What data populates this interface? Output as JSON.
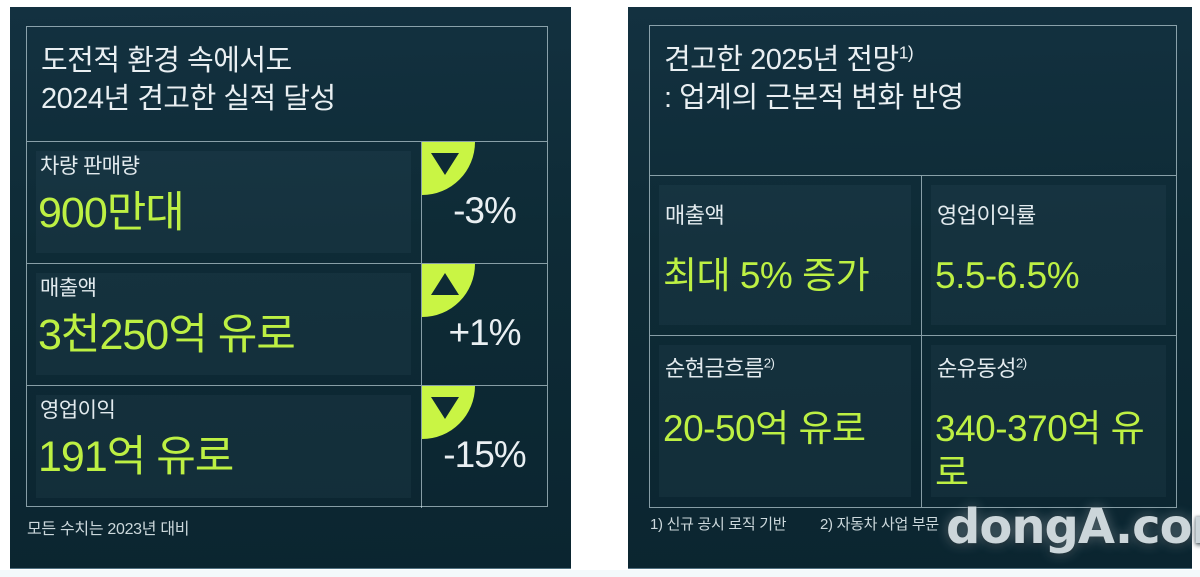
{
  "colors": {
    "panel_background": "#0e2b36",
    "accent_green": "#bff33c",
    "badge_green": "#c9f544",
    "border_line": "#d4e6ee",
    "text_white": "#e9eff2",
    "text_muted": "#ccd8dc"
  },
  "left_panel": {
    "title_line1": "도전적 환경 속에서도",
    "title_line2": "2024년 견고한 실적 달성",
    "rows": [
      {
        "label": "차량 판매량",
        "value": "900만대",
        "direction": "down",
        "change": "-3%"
      },
      {
        "label": "매출액",
        "value": "3천250억 유로",
        "direction": "up",
        "change": "+1%"
      },
      {
        "label": "영업이익",
        "value": "191억 유로",
        "direction": "down",
        "change": "-15%"
      }
    ],
    "footnote": "모든 수치는 2023년 대비"
  },
  "right_panel": {
    "title_line1": "견고한 2025년 전망",
    "title_sup": "1)",
    "title_line2": ": 업계의 근본적 변화 반영",
    "cells": [
      {
        "label": "매출액",
        "sup": "",
        "value": "최대 5% 증가"
      },
      {
        "label": "영업이익률",
        "sup": "",
        "value": "5.5-6.5%"
      },
      {
        "label": "순현금흐름",
        "sup": "2)",
        "value": "20-50억 유로"
      },
      {
        "label": "순유동성",
        "sup": "2)",
        "value": "340-370억 유로"
      }
    ],
    "footnote_1": "1) 신규 공시 로직 기반",
    "footnote_2": "2) 자동차 사업 부문"
  },
  "watermark": "dongA.com"
}
